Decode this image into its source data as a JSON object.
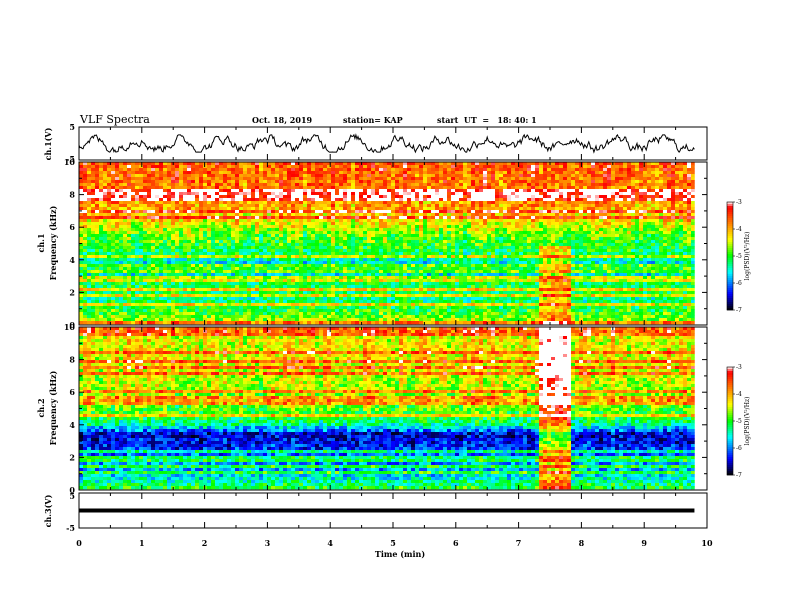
{
  "header": {
    "title": "VLF Spectra",
    "date": "Oct. 18, 2019",
    "station": "station= KAP",
    "start": "start  UT  =   18: 40: 1"
  },
  "chart_data": [
    {
      "type": "line",
      "panel": "ch1-voltage",
      "ylabel": "ch.1(V)",
      "ylim": [
        -5,
        5
      ],
      "yticks": [
        "5",
        "-5"
      ],
      "xlim": [
        0,
        10
      ],
      "note": "noisy waveform oscillating roughly between -2 and 2 V"
    },
    {
      "type": "heatmap",
      "panel": "ch1-spectrogram",
      "ylabel": "ch.1\nFrequency  (kHz)",
      "ylim": [
        0,
        10
      ],
      "yticks": [
        "0",
        "2",
        "4",
        "6",
        "8",
        "10"
      ],
      "xlim": [
        0,
        10
      ],
      "colorbar": {
        "label": "log(PSD)(V²/Hz)",
        "range": [
          -7,
          -3
        ],
        "ticks": [
          "-3",
          "-4",
          "-5",
          "-6",
          "-7"
        ]
      },
      "profile": [
        {
          "f": 0,
          "v": -4.5
        },
        {
          "f": 0.8,
          "v": -5.0
        },
        {
          "f": 1.6,
          "v": -5.3
        },
        {
          "f": 2.2,
          "v": -5.0
        },
        {
          "f": 2.8,
          "v": -5.3
        },
        {
          "f": 3.4,
          "v": -5.8
        },
        {
          "f": 4.0,
          "v": -5.4
        },
        {
          "f": 4.8,
          "v": -5.0
        },
        {
          "f": 5.5,
          "v": -4.8
        },
        {
          "f": 6.5,
          "v": -4.2
        },
        {
          "f": 8.0,
          "v": -3.8
        },
        {
          "f": 10,
          "v": -3.6
        }
      ],
      "event": {
        "t_start": 7.35,
        "t_end": 7.85,
        "f_max": 4.8,
        "shift": 0.9
      }
    },
    {
      "type": "heatmap",
      "panel": "ch2-spectrogram",
      "ylabel": "ch.2\nFrequency  (kHz)",
      "ylim": [
        0,
        10
      ],
      "yticks": [
        "0",
        "2",
        "4",
        "6",
        "8",
        "10"
      ],
      "xlim": [
        0,
        10
      ],
      "colorbar": {
        "label": "log(PSD)(V²/Hz)",
        "range": [
          -7,
          -3
        ],
        "ticks": [
          "-3",
          "-4",
          "-5",
          "-6",
          "-7"
        ]
      },
      "profile": [
        {
          "f": 0,
          "v": -5.0
        },
        {
          "f": 1.0,
          "v": -5.8
        },
        {
          "f": 2.0,
          "v": -6.0
        },
        {
          "f": 2.6,
          "v": -6.3
        },
        {
          "f": 3.4,
          "v": -6.5
        },
        {
          "f": 4.0,
          "v": -5.3
        },
        {
          "f": 5.0,
          "v": -4.8
        },
        {
          "f": 6.0,
          "v": -4.6
        },
        {
          "f": 8.0,
          "v": -4.3
        },
        {
          "f": 10,
          "v": -4.4
        }
      ],
      "event": {
        "t_start": 7.35,
        "t_end": 7.85,
        "f_max": 10,
        "shift": 1.6
      }
    },
    {
      "type": "line",
      "panel": "ch3-voltage",
      "ylabel": "ch.3(V)",
      "ylim": [
        -5,
        5
      ],
      "yticks": [
        "5",
        "0",
        "-5"
      ],
      "xlim": [
        0,
        10
      ],
      "xlabel": "Time  (min)",
      "xticks": [
        "0",
        "1",
        "2",
        "3",
        "4",
        "5",
        "6",
        "7",
        "8",
        "9",
        "10"
      ],
      "constant_value": 0,
      "data_end": 9.8
    }
  ],
  "colors": {
    "line": "#000000",
    "colormap": [
      "#000000",
      "#0000ff",
      "#00ffff",
      "#00ff00",
      "#ffff00",
      "#ff8000",
      "#ff0000",
      "#ffffff"
    ]
  }
}
